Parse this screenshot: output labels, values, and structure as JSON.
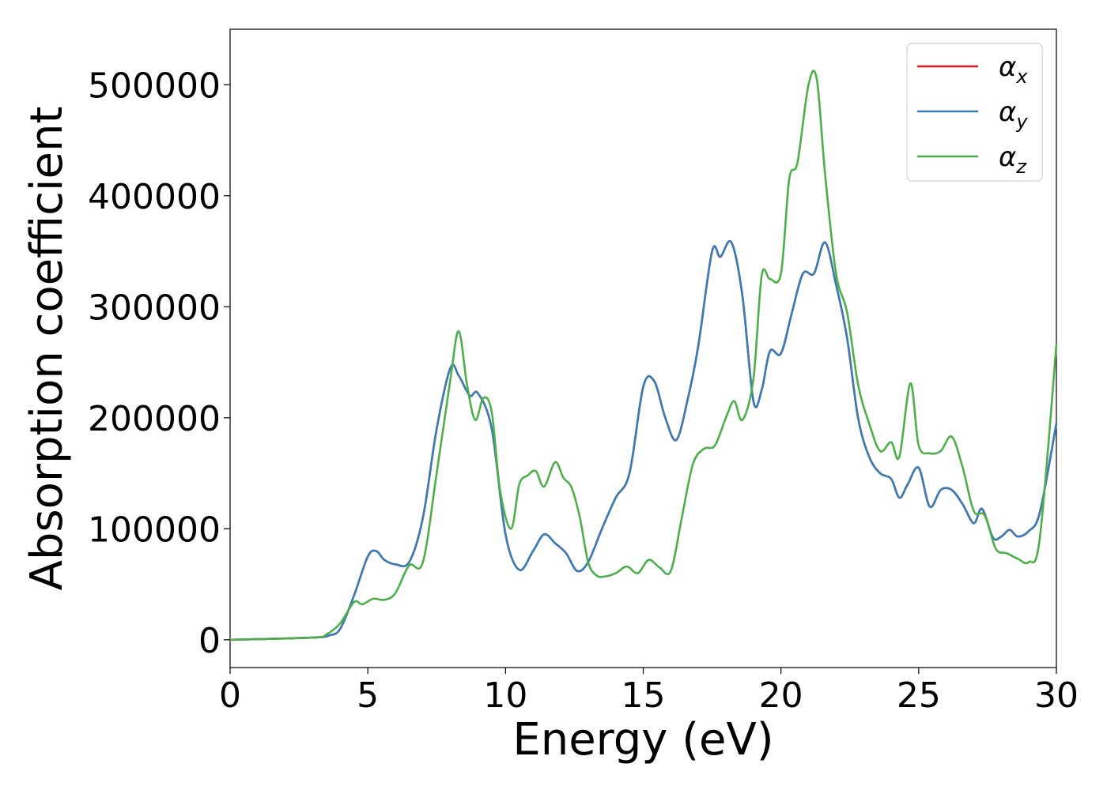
{
  "chart_data": {
    "type": "line",
    "title": "",
    "xlabel": "Energy (eV)",
    "ylabel": "Absorption coefficient",
    "xlim": [
      0,
      30
    ],
    "ylim": [
      -25000,
      550000
    ],
    "xticks": [
      0,
      5,
      10,
      15,
      20,
      25,
      30
    ],
    "yticks": [
      0,
      100000,
      200000,
      300000,
      400000,
      500000
    ],
    "xtick_labels": [
      "0",
      "5",
      "10",
      "15",
      "20",
      "25",
      "30"
    ],
    "ytick_labels": [
      "0",
      "100000",
      "200000",
      "300000",
      "400000",
      "500000"
    ],
    "grid": false,
    "legend_position": "top-right",
    "series": [
      {
        "name": "α_x",
        "legend_main": "α",
        "legend_sub": "x",
        "color": "#e41a1c",
        "x": [
          0,
          3,
          3.6,
          4.0,
          4.5,
          5.0,
          5.3,
          5.6,
          6.0,
          6.5,
          7.0,
          7.5,
          8.0,
          8.3,
          8.7,
          9.0,
          9.5,
          10.0,
          10.5,
          11.0,
          11.4,
          11.8,
          12.2,
          12.6,
          13.0,
          13.5,
          14.0,
          14.5,
          15.0,
          15.4,
          15.8,
          16.2,
          16.6,
          17.0,
          17.5,
          17.8,
          18.2,
          18.6,
          19.0,
          19.3,
          19.6,
          20.0,
          20.4,
          20.8,
          21.2,
          21.6,
          22.0,
          22.4,
          22.8,
          23.2,
          23.6,
          24.0,
          24.3,
          24.6,
          25.0,
          25.4,
          25.8,
          26.2,
          26.6,
          27.0,
          27.3,
          27.7,
          28.0,
          28.3,
          28.6,
          29.0,
          29.4,
          30.0
        ],
        "y": [
          0,
          2000,
          4000,
          10000,
          40000,
          75000,
          80000,
          72000,
          68000,
          70000,
          110000,
          190000,
          245000,
          238000,
          220000,
          222000,
          190000,
          95000,
          63000,
          80000,
          95000,
          87000,
          78000,
          62000,
          70000,
          100000,
          128000,
          150000,
          228000,
          233000,
          200000,
          180000,
          215000,
          265000,
          350000,
          345000,
          358000,
          310000,
          215000,
          225000,
          260000,
          258000,
          295000,
          330000,
          330000,
          358000,
          320000,
          272000,
          200000,
          165000,
          150000,
          145000,
          128000,
          140000,
          155000,
          120000,
          135000,
          135000,
          122000,
          105000,
          118000,
          92000,
          93000,
          99000,
          93000,
          98000,
          115000,
          195000
        ]
      },
      {
        "name": "α_y",
        "legend_main": "α",
        "legend_sub": "y",
        "color": "#377eb8",
        "x": [
          0,
          3,
          3.6,
          4.0,
          4.5,
          5.0,
          5.3,
          5.6,
          6.0,
          6.5,
          7.0,
          7.5,
          8.0,
          8.3,
          8.7,
          9.0,
          9.5,
          10.0,
          10.5,
          11.0,
          11.4,
          11.8,
          12.2,
          12.6,
          13.0,
          13.5,
          14.0,
          14.5,
          15.0,
          15.4,
          15.8,
          16.2,
          16.6,
          17.0,
          17.5,
          17.8,
          18.2,
          18.6,
          19.0,
          19.3,
          19.6,
          20.0,
          20.4,
          20.8,
          21.2,
          21.6,
          22.0,
          22.4,
          22.8,
          23.2,
          23.6,
          24.0,
          24.3,
          24.6,
          25.0,
          25.4,
          25.8,
          26.2,
          26.6,
          27.0,
          27.3,
          27.7,
          28.0,
          28.3,
          28.6,
          29.0,
          29.4,
          30.0
        ],
        "y": [
          0,
          2000,
          4000,
          10000,
          40000,
          75000,
          80000,
          72000,
          68000,
          70000,
          110000,
          190000,
          245000,
          238000,
          220000,
          222000,
          190000,
          95000,
          63000,
          80000,
          95000,
          87000,
          78000,
          62000,
          70000,
          100000,
          128000,
          150000,
          228000,
          233000,
          200000,
          180000,
          215000,
          265000,
          350000,
          345000,
          358000,
          310000,
          215000,
          225000,
          260000,
          258000,
          295000,
          330000,
          330000,
          358000,
          320000,
          272000,
          200000,
          165000,
          150000,
          145000,
          128000,
          140000,
          155000,
          120000,
          135000,
          135000,
          122000,
          105000,
          118000,
          92000,
          93000,
          99000,
          93000,
          98000,
          115000,
          195000
        ]
      },
      {
        "name": "α_z",
        "legend_main": "α",
        "legend_sub": "z",
        "color": "#4daf4a",
        "x": [
          0,
          3,
          3.5,
          4.0,
          4.5,
          4.8,
          5.2,
          5.6,
          6.0,
          6.5,
          7.0,
          7.5,
          8.0,
          8.3,
          8.6,
          8.9,
          9.2,
          9.5,
          9.8,
          10.2,
          10.5,
          10.8,
          11.1,
          11.4,
          11.8,
          12.1,
          12.4,
          12.7,
          13.0,
          13.3,
          13.6,
          14.0,
          14.4,
          14.8,
          15.2,
          15.6,
          16.0,
          16.4,
          16.8,
          17.2,
          17.6,
          18.0,
          18.3,
          18.6,
          19.0,
          19.3,
          19.6,
          20.0,
          20.3,
          20.6,
          21.0,
          21.3,
          21.6,
          22.0,
          22.4,
          22.8,
          23.2,
          23.6,
          24.0,
          24.3,
          24.7,
          25.0,
          25.4,
          25.8,
          26.2,
          26.6,
          27.0,
          27.4,
          27.8,
          28.2,
          28.6,
          29.0,
          29.4,
          30.0
        ],
        "y": [
          0,
          2000,
          5000,
          15000,
          34000,
          32000,
          37000,
          36000,
          42000,
          67000,
          70000,
          150000,
          235000,
          278000,
          230000,
          198000,
          218000,
          205000,
          135000,
          100000,
          140000,
          148000,
          152000,
          138000,
          160000,
          146000,
          137000,
          110000,
          70000,
          58000,
          57000,
          60000,
          66000,
          60000,
          72000,
          65000,
          62000,
          110000,
          158000,
          172000,
          175000,
          200000,
          215000,
          198000,
          235000,
          328000,
          325000,
          330000,
          415000,
          430000,
          500000,
          505000,
          420000,
          330000,
          295000,
          230000,
          195000,
          170000,
          178000,
          165000,
          231000,
          175000,
          168000,
          170000,
          183000,
          155000,
          116000,
          112000,
          82000,
          78000,
          73000,
          70000,
          92000,
          266000
        ]
      }
    ]
  }
}
